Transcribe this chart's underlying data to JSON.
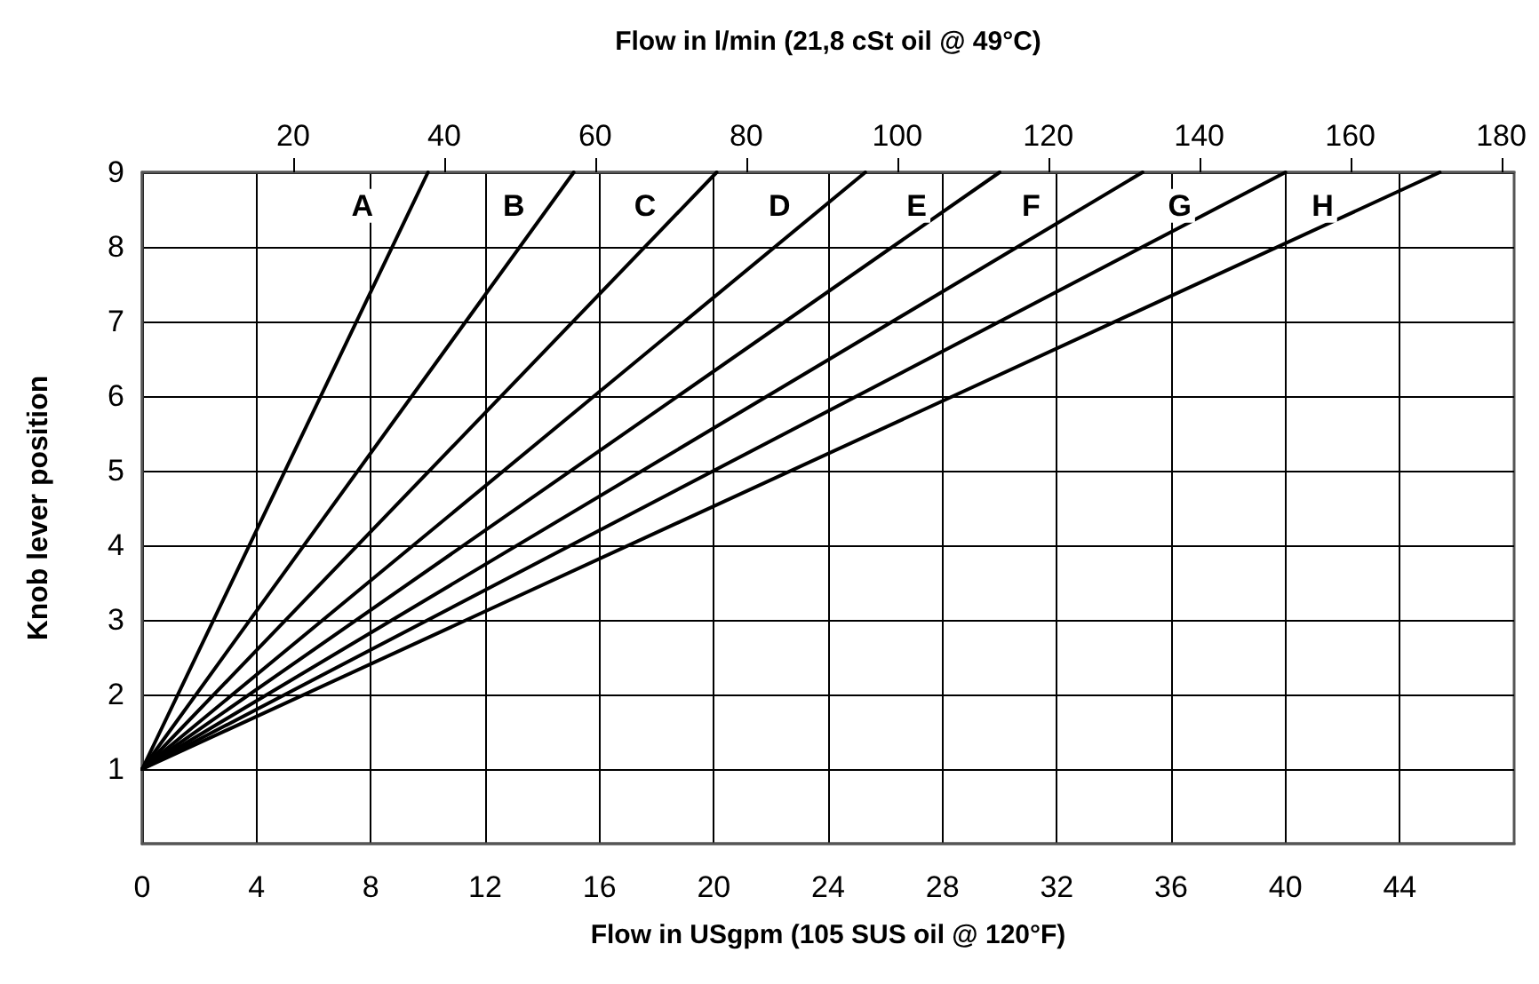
{
  "chart_data": {
    "type": "line",
    "xlabel": "Flow in USgpm (105 SUS oil @ 120°F)",
    "x2label": "Flow in l/min (21,8 cSt oil @ 49°C)",
    "ylabel": "Knob lever position",
    "xlim": [
      0,
      48
    ],
    "xticks": [
      0,
      4,
      8,
      12,
      16,
      20,
      24,
      28,
      32,
      36,
      40,
      44
    ],
    "x2lim": [
      0,
      181.7
    ],
    "x2ticks": [
      20,
      40,
      60,
      80,
      100,
      120,
      140,
      160,
      180
    ],
    "ylim": [
      0,
      9
    ],
    "yticks": [
      1,
      2,
      3,
      4,
      5,
      6,
      7,
      8,
      9
    ],
    "grid": true,
    "marker": "none",
    "line_style": "solid",
    "series": [
      {
        "color": "#000000",
        "x": [
          0,
          10
        ],
        "values": [
          1,
          9
        ]
      },
      {
        "color": "#000000",
        "x": [
          0,
          15.1
        ],
        "values": [
          1,
          9
        ]
      },
      {
        "color": "#000000",
        "x": [
          0,
          20.1
        ],
        "values": [
          1,
          9
        ]
      },
      {
        "color": "#000000",
        "x": [
          0,
          25.3
        ],
        "values": [
          1,
          9
        ]
      },
      {
        "color": "#000000",
        "x": [
          0,
          30
        ],
        "values": [
          1,
          9
        ]
      },
      {
        "color": "#000000",
        "x": [
          0,
          35
        ],
        "values": [
          1,
          9
        ]
      },
      {
        "color": "#000000",
        "x": [
          0,
          40
        ],
        "values": [
          1,
          9
        ]
      },
      {
        "color": "#000000",
        "x": [
          0,
          45.4
        ],
        "values": [
          1,
          9
        ]
      }
    ],
    "annotations": [
      {
        "text": "A",
        "x": 7.7,
        "y": 8.55
      },
      {
        "text": "B",
        "x": 13,
        "y": 8.55
      },
      {
        "text": "C",
        "x": 17.6,
        "y": 8.55
      },
      {
        "text": "D",
        "x": 22.3,
        "y": 8.55
      },
      {
        "text": "E",
        "x": 27.1,
        "y": 8.55
      },
      {
        "text": "F",
        "x": 31.1,
        "y": 8.55
      },
      {
        "text": "G",
        "x": 36.3,
        "y": 8.55
      },
      {
        "text": "H",
        "x": 41.3,
        "y": 8.55
      }
    ]
  }
}
